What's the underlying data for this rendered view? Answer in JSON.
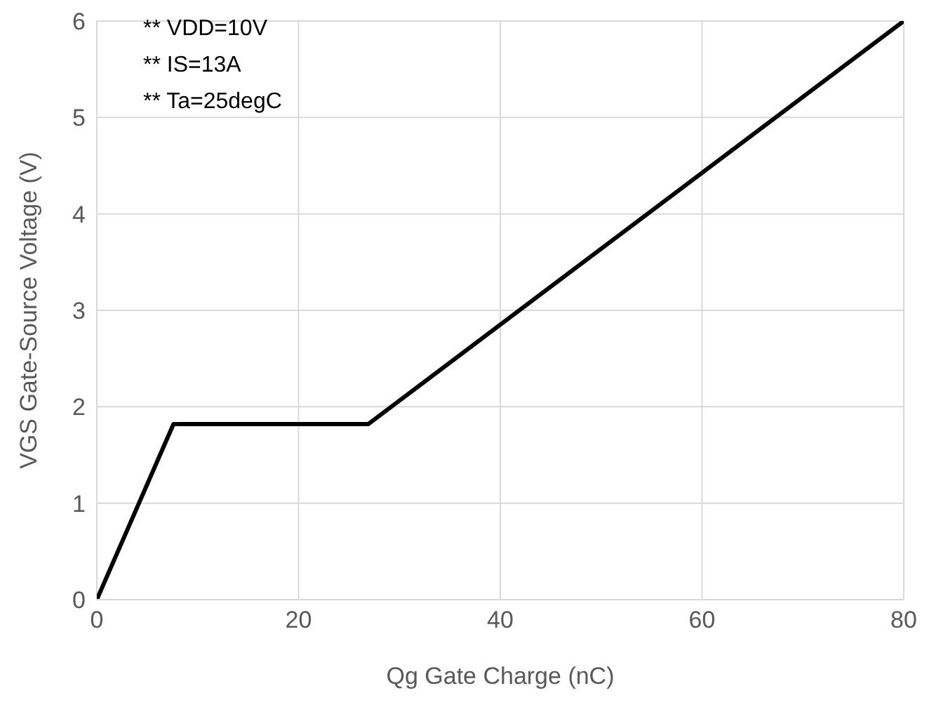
{
  "chart_data": {
    "type": "line",
    "xlabel": "Qg Gate Charge (nC)",
    "ylabel": "VGS Gate-Source Voltage (V)",
    "annotations": [
      "** VDD=10V",
      "** IS=13A",
      "** Ta=25degC"
    ],
    "x": [
      0,
      7.6,
      26.9,
      80
    ],
    "series": [
      {
        "color": "#000000",
        "values": [
          0,
          1.82,
          1.82,
          6
        ]
      }
    ],
    "xlim": [
      0,
      80
    ],
    "xticks": [
      0,
      20,
      40,
      60,
      80
    ],
    "ylim": [
      0,
      6
    ],
    "yticks": [
      0,
      1,
      2,
      3,
      4,
      5,
      6
    ],
    "grid": true,
    "legend": false,
    "marker": "none",
    "line_style": "solid"
  }
}
